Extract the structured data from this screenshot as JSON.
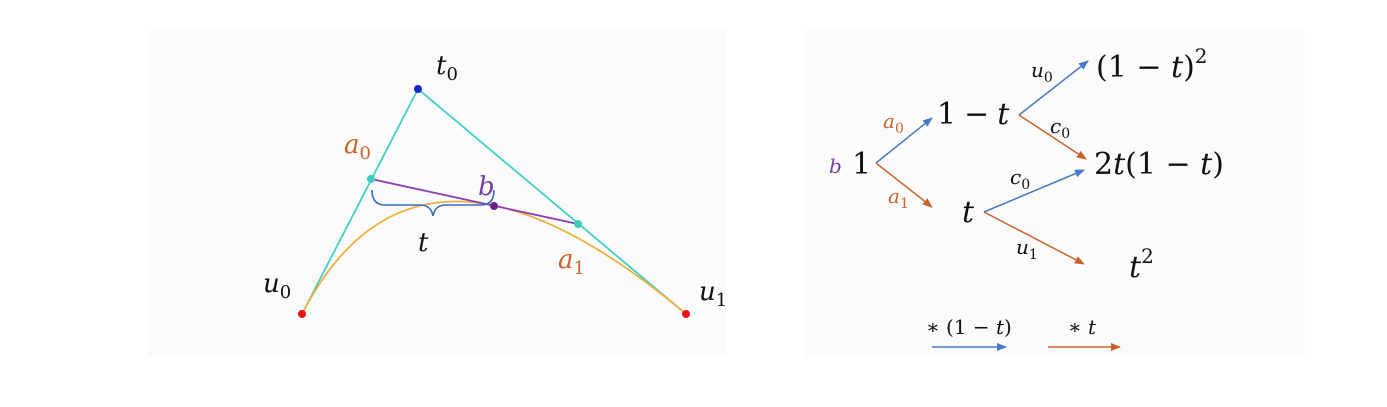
{
  "colors": {
    "background": "#ffffff",
    "panel": "#fbfbfb",
    "control_lines": "#40d0c8",
    "curve": "#f0b040",
    "lerp_segment": "#8a3cb8",
    "point_b": "#6a1f8a",
    "point_t0": "#1a23cc",
    "endpoints": "#ee1111",
    "midpoints": "#3ecec0",
    "brace": "#3a6cc0",
    "arrow_blue": "#4a78c8",
    "arrow_orange": "#c8642a",
    "label_orange": "#c8642a",
    "label_purple": "#7a3aa8",
    "text": "#111111"
  },
  "left_figure": {
    "t0": {
      "base": "t",
      "sub": "0"
    },
    "u0": {
      "base": "u",
      "sub": "0"
    },
    "u1": {
      "base": "u",
      "sub": "1"
    },
    "a0": {
      "base": "a",
      "sub": "0"
    },
    "a1": {
      "base": "a",
      "sub": "1"
    },
    "b": "b",
    "t": "t"
  },
  "right_figure": {
    "b": "b",
    "root": "1",
    "a0": {
      "base": "a",
      "sub": "0"
    },
    "a1": {
      "base": "a",
      "sub": "1"
    },
    "one_minus_t": {
      "a": "1",
      "op": "−",
      "b": "t"
    },
    "t": "t",
    "u0": {
      "base": "u",
      "sub": "0"
    },
    "u1": {
      "base": "u",
      "sub": "1"
    },
    "c0_top": {
      "base": "c",
      "sub": "0"
    },
    "c0_bottom": {
      "base": "c",
      "sub": "0"
    },
    "leaf_top": {
      "open": "(1 − ",
      "var": "t",
      "close": ")",
      "sup": "2"
    },
    "leaf_mid": {
      "pre": "2",
      "var1": "t",
      "open": "(1 − ",
      "var2": "t",
      "close": ")"
    },
    "leaf_bottom": {
      "base": "t",
      "sup": "2"
    }
  },
  "legend": {
    "blue": {
      "prefix": "∗ (1 − ",
      "var": "t",
      "suffix": ")"
    },
    "orange": {
      "prefix": "∗ ",
      "var": "t"
    }
  }
}
